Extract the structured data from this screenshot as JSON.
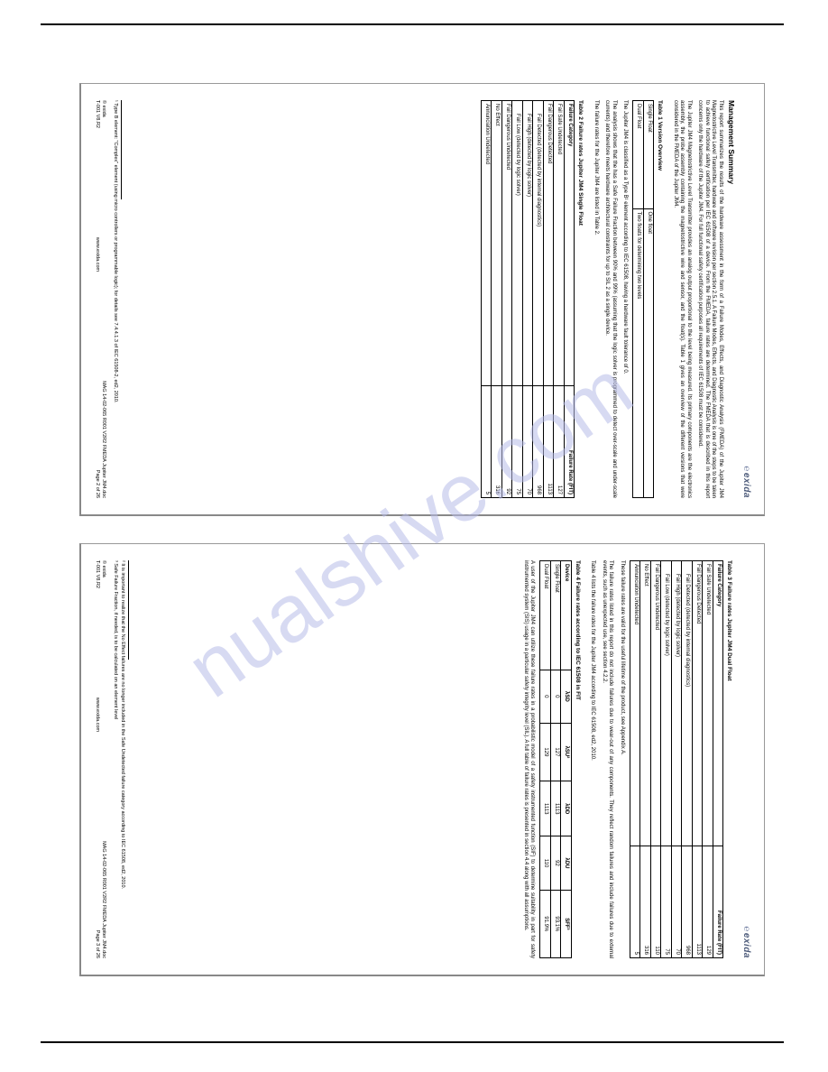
{
  "watermark": "nualshive.com",
  "brand": "exida",
  "page_left": {
    "heading": "Management Summary",
    "p1": "This report summarizes the results of the hardware assessment in the form of a Failure Modes, Effects, and Diagnostic Analysis (FMEDA) of the Jupiter JM4 Magnetostrictive Level Transmitter, hardware and software revision per section 2.5.1. A Failure Modes, Effects, and Diagnostic Analysis is one of the steps to be taken to achieve functional safety certification per IEC 61508 of a device. From the FMEDA, failure rates are determined. The FMEDA that is described in this report concerns only the hardware of the Jupiter JM4. For full functional safety certification purposes all requirements of IEC 61508 must be considered.",
    "p2": "The Jupiter JM4 Magnetostrictive Level Transmitter provides an analog output proportional to the level being measured. Its primary components are the electronics assembly, the probe assembly containing the magnetostrictive wire and sensor, and the float(s). Table 1 gives an overview of the different versions that were considered in the FMEDA of the Jupiter JM4.",
    "table1": {
      "caption": "Table 1 Version Overview",
      "rows": [
        [
          "Single Float",
          "One float"
        ],
        [
          "Dual Float",
          "Two floats for determining two levels"
        ]
      ]
    },
    "p3": "The Jupiter JM4 is classified as a Type B¹ element according to IEC 61508, having a hardware fault tolerance of 0.",
    "p4": "The analysis shows that the has a Safe Failure Fraction between 90% and 99% (assuming that the logic solver is programmed to detect over-scale and under-scale currents) and therefore meets hardware architectural constraints for up to SIL 2 as a single device.",
    "p5": "The failure rates for the Jupiter JM4 are listed in Table 2.",
    "table2": {
      "caption": "Table 2 Failure rates Jupiter JM4 Single Float",
      "headers": [
        "Failure Category",
        "Failure Rate (FIT)"
      ],
      "rows": [
        {
          "c": "Fail Safe Undetected",
          "v": "127",
          "indent": false
        },
        {
          "c": "Fail Dangerous Detected",
          "v": "1113",
          "indent": false
        },
        {
          "c": "Fail Detected (detected by internal diagnostics)",
          "v": "968",
          "indent": true
        },
        {
          "c": "Fail High (detected by logic solver)",
          "v": "70",
          "indent": true
        },
        {
          "c": "Fail Low (detected by logic solver)",
          "v": "75",
          "indent": true
        },
        {
          "c": "Fail Dangerous Undetected",
          "v": "92",
          "indent": false
        },
        {
          "c": "No Effect",
          "v": "316",
          "indent": false
        },
        {
          "c": "Annunciation Undetected",
          "v": "5",
          "indent": false
        }
      ]
    },
    "fn1": "¹ Type B element: \"Complex\" element (using micro controllers or programmable logic); for details see 7.4.4.1.3 of IEC 61508-2, ed2, 2010.",
    "foot_left_a": "© exida",
    "foot_left_b": "T-001 V8.R2",
    "foot_mid": "www.exida.com",
    "foot_right_a": "MAG 14-02-065 R001 V2R2 FMEDA Jupiter JM4.doc",
    "foot_right_b": "Page 2 of 26"
  },
  "page_right": {
    "table3": {
      "caption": "Table 3 Failure rates Jupiter JM4 Dual Float",
      "headers": [
        "Failure Category",
        "Failure Rate (FIT)"
      ],
      "rows": [
        {
          "c": "Fail Safe Undetected",
          "v": "129",
          "indent": false
        },
        {
          "c": "Fail Dangerous Detected",
          "v": "1113",
          "indent": false
        },
        {
          "c": "Fail Detected (detected by internal diagnostics)",
          "v": "968",
          "indent": true
        },
        {
          "c": "Fail High (detected by logic solver)",
          "v": "70",
          "indent": true
        },
        {
          "c": "Fail Low (detected by logic solver)",
          "v": "75",
          "indent": true
        },
        {
          "c": "Fail Dangerous Undetected",
          "v": "110",
          "indent": false
        },
        {
          "c": "No Effect",
          "v": "316",
          "indent": false
        },
        {
          "c": "Annunciation Undetected",
          "v": "5",
          "indent": false
        }
      ]
    },
    "p1": "These failure rates are valid for the useful lifetime of the product, see Appendix A.",
    "p2": "The failure rates listed in this report do not include failures due to wear-out of any components. They reflect random failures and include failures due to external events, such as unexpected use, see section 4.2.2.",
    "p3": "Table 4 lists the failure rates for the Jupiter JM4 according to IEC 61508, ed2, 2010.",
    "table4": {
      "caption": "Table 4 Failure rates according to IEC 61508 in FIT",
      "headers": [
        "Device",
        "λSD",
        "λSU²",
        "λDD",
        "λDU",
        "SFF³"
      ],
      "rows": [
        [
          "Single Float",
          "0",
          "127",
          "1113",
          "92",
          "93.1%"
        ],
        [
          "Dual Float",
          "0",
          "129",
          "1113",
          "110",
          "91.9%"
        ]
      ]
    },
    "p4": "A user of the Jupiter JM4 can utilize these failure rates in a probabilistic model of a safety instrumented function (SIF) to determine suitability in part for safety instrumented system (SIS) usage in a particular safety integrity level (SIL). A full table of failure rates is presented in section 4.4 along with all assumptions.",
    "fn2": "² It is important to realize that the No Effect failures are no longer included in the Safe Undetected failure category according to IEC 61508, ed2, 2010.",
    "fn3": "³ Safe Failure Fraction, if needed, is to be calculated on an element level",
    "foot_left_a": "© exida",
    "foot_left_b": "T-001 V8.R2",
    "foot_mid": "www.exida.com",
    "foot_right_a": "MAG 14-02-065 R001 V2R2 FMEDA Jupiter JM4.doc",
    "foot_right_b": "Page 3 of 26"
  }
}
